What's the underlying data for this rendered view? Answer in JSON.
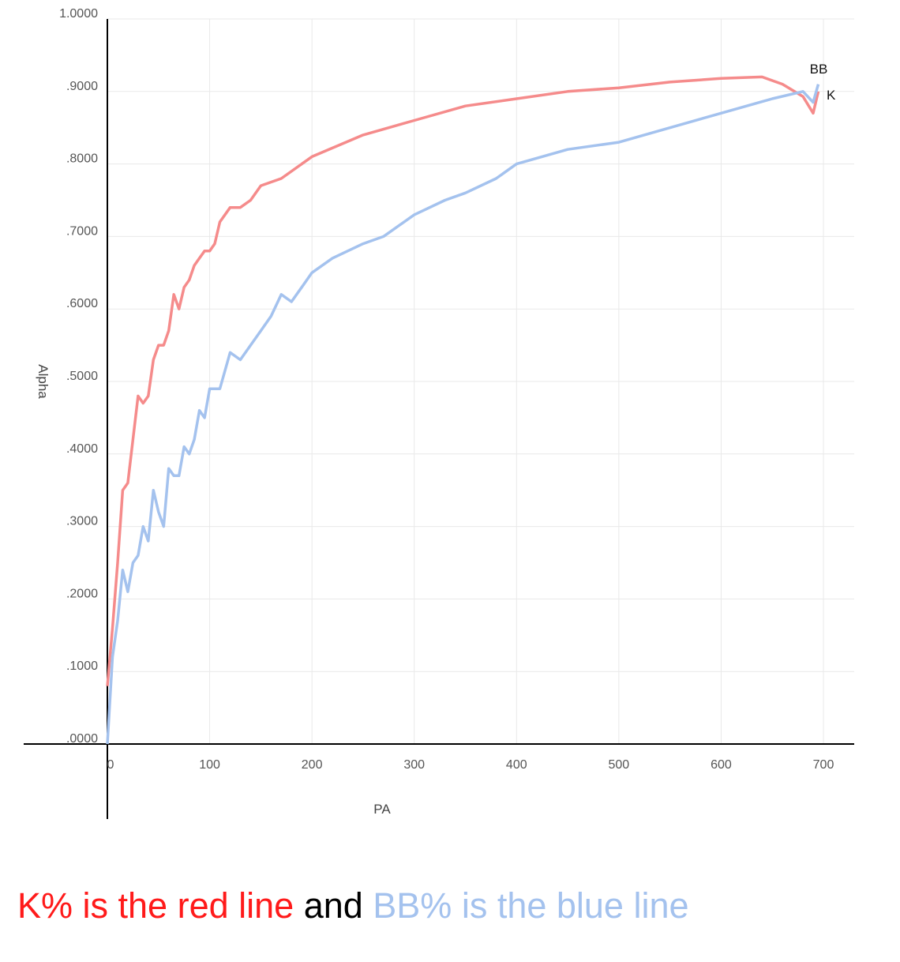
{
  "chart_data": {
    "type": "line",
    "xlabel": "PA",
    "ylabel": "Alpha",
    "xlim": [
      0,
      700
    ],
    "ylim": [
      0,
      1
    ],
    "x_ticks": [
      "0",
      "100",
      "200",
      "300",
      "400",
      "500",
      "600",
      "700"
    ],
    "y_ticks": [
      ".0000",
      ".1000",
      ".2000",
      ".3000",
      ".4000",
      ".5000",
      ".6000",
      ".7000",
      ".8000",
      ".9000",
      "1.0000"
    ],
    "grid": true,
    "series": [
      {
        "name": "K",
        "color": "#f58b8b",
        "points": [
          [
            0,
            0.08
          ],
          [
            5,
            0.16
          ],
          [
            10,
            0.25
          ],
          [
            15,
            0.35
          ],
          [
            20,
            0.36
          ],
          [
            25,
            0.42
          ],
          [
            30,
            0.48
          ],
          [
            35,
            0.47
          ],
          [
            40,
            0.48
          ],
          [
            45,
            0.53
          ],
          [
            50,
            0.55
          ],
          [
            55,
            0.55
          ],
          [
            60,
            0.57
          ],
          [
            65,
            0.62
          ],
          [
            70,
            0.6
          ],
          [
            75,
            0.63
          ],
          [
            80,
            0.64
          ],
          [
            85,
            0.66
          ],
          [
            90,
            0.67
          ],
          [
            95,
            0.68
          ],
          [
            100,
            0.68
          ],
          [
            105,
            0.69
          ],
          [
            110,
            0.72
          ],
          [
            120,
            0.74
          ],
          [
            130,
            0.74
          ],
          [
            140,
            0.75
          ],
          [
            150,
            0.77
          ],
          [
            170,
            0.78
          ],
          [
            200,
            0.81
          ],
          [
            250,
            0.84
          ],
          [
            300,
            0.86
          ],
          [
            350,
            0.88
          ],
          [
            400,
            0.89
          ],
          [
            450,
            0.9
          ],
          [
            500,
            0.905
          ],
          [
            550,
            0.913
          ],
          [
            600,
            0.918
          ],
          [
            640,
            0.92
          ],
          [
            660,
            0.91
          ],
          [
            680,
            0.893
          ],
          [
            690,
            0.87
          ],
          [
            695,
            0.9
          ]
        ]
      },
      {
        "name": "BB",
        "color": "#a4c2ee",
        "points": [
          [
            0,
            0.0
          ],
          [
            5,
            0.12
          ],
          [
            10,
            0.17
          ],
          [
            15,
            0.24
          ],
          [
            20,
            0.21
          ],
          [
            25,
            0.25
          ],
          [
            30,
            0.26
          ],
          [
            35,
            0.3
          ],
          [
            40,
            0.28
          ],
          [
            45,
            0.35
          ],
          [
            50,
            0.32
          ],
          [
            55,
            0.3
          ],
          [
            60,
            0.38
          ],
          [
            65,
            0.37
          ],
          [
            70,
            0.37
          ],
          [
            75,
            0.41
          ],
          [
            80,
            0.4
          ],
          [
            85,
            0.42
          ],
          [
            90,
            0.46
          ],
          [
            95,
            0.45
          ],
          [
            100,
            0.49
          ],
          [
            110,
            0.49
          ],
          [
            120,
            0.54
          ],
          [
            130,
            0.53
          ],
          [
            140,
            0.55
          ],
          [
            150,
            0.57
          ],
          [
            160,
            0.59
          ],
          [
            170,
            0.62
          ],
          [
            180,
            0.61
          ],
          [
            190,
            0.63
          ],
          [
            200,
            0.65
          ],
          [
            220,
            0.67
          ],
          [
            250,
            0.69
          ],
          [
            270,
            0.7
          ],
          [
            300,
            0.73
          ],
          [
            330,
            0.75
          ],
          [
            350,
            0.76
          ],
          [
            380,
            0.78
          ],
          [
            400,
            0.8
          ],
          [
            450,
            0.82
          ],
          [
            500,
            0.83
          ],
          [
            550,
            0.85
          ],
          [
            600,
            0.87
          ],
          [
            650,
            0.89
          ],
          [
            680,
            0.9
          ],
          [
            690,
            0.885
          ],
          [
            695,
            0.91
          ]
        ]
      }
    ],
    "end_labels": [
      "BB",
      "K"
    ]
  },
  "caption": {
    "k_text": "K% is the red line",
    "mid_text": " and ",
    "bb_text": "BB% is the blue line"
  }
}
